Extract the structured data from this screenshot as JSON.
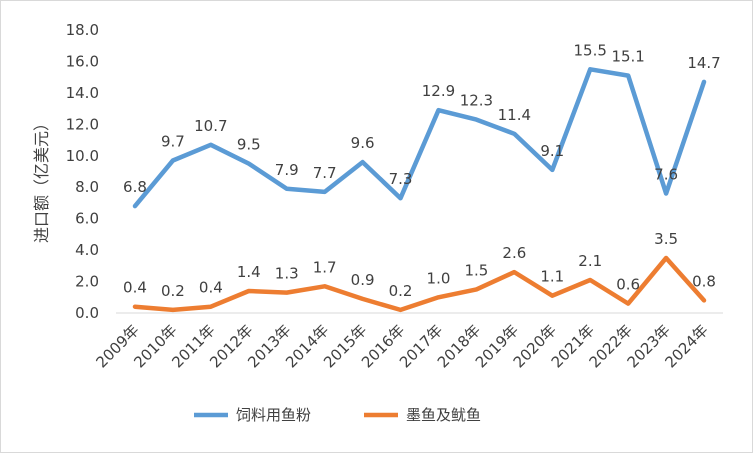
{
  "chart_data": {
    "type": "line",
    "ylabel": "进口额（亿美元）",
    "ylim": [
      0,
      18
    ],
    "yticks": [
      "0.0",
      "2.0",
      "4.0",
      "6.0",
      "8.0",
      "10.0",
      "12.0",
      "14.0",
      "16.0",
      "18.0"
    ],
    "categories": [
      "2009年",
      "2010年",
      "2011年",
      "2012年",
      "2013年",
      "2014年",
      "2015年",
      "2016年",
      "2017年",
      "2018年",
      "2019年",
      "2020年",
      "2021年",
      "2022年",
      "2023年",
      "2024年"
    ],
    "grid": false,
    "legend_position": "bottom",
    "series": [
      {
        "name": "饲料用鱼粉",
        "color": "#5b9bd5",
        "values": [
          6.8,
          9.7,
          10.7,
          9.5,
          7.9,
          7.7,
          9.6,
          7.3,
          12.9,
          12.3,
          11.4,
          9.1,
          15.5,
          15.1,
          7.6,
          14.7
        ],
        "labels": [
          "6.8",
          "9.7",
          "10.7",
          "9.5",
          "7.9",
          "7.7",
          "9.6",
          "7.3",
          "12.9",
          "12.3",
          "11.4",
          "9.1",
          "15.5",
          "15.1",
          "7.6",
          "14.7"
        ]
      },
      {
        "name": "墨鱼及鱿鱼",
        "color": "#ed7d31",
        "values": [
          0.4,
          0.2,
          0.4,
          1.4,
          1.3,
          1.7,
          0.9,
          0.2,
          1.0,
          1.5,
          2.6,
          1.1,
          2.1,
          0.6,
          3.5,
          0.8
        ],
        "labels": [
          "0.4",
          "0.2",
          "0.4",
          "1.4",
          "1.3",
          "1.7",
          "0.9",
          "0.2",
          "1.0",
          "1.5",
          "2.6",
          "1.1",
          "2.1",
          "0.6",
          "3.5",
          "0.8"
        ]
      }
    ]
  }
}
